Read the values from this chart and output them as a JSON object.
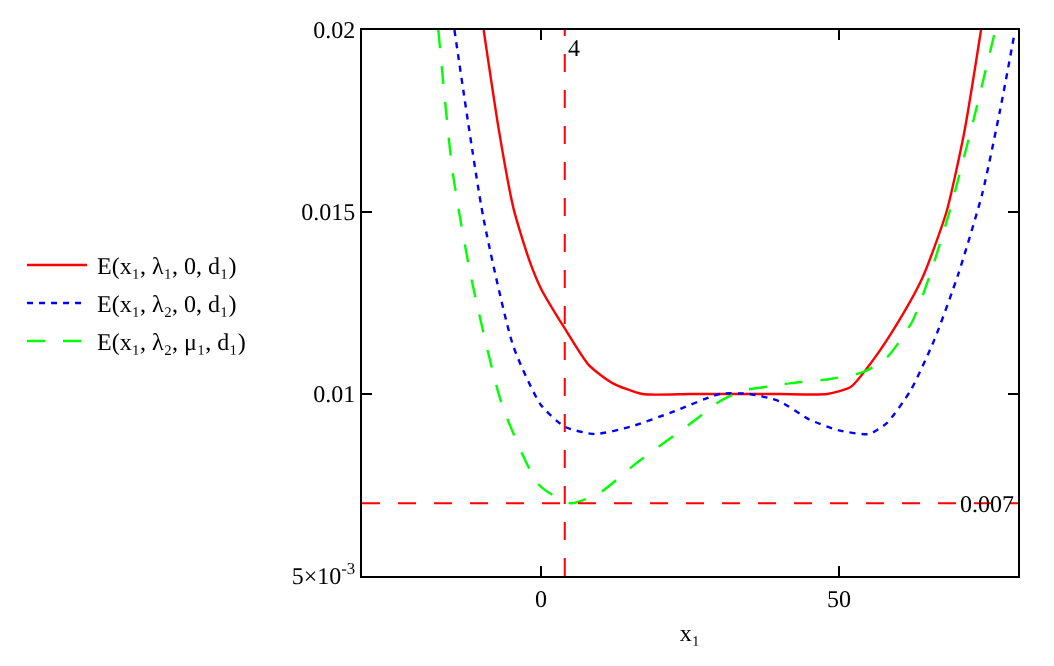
{
  "chart_data": {
    "type": "line",
    "xlabel": "x₁",
    "xlim": [
      -30,
      80
    ],
    "xticks": [
      0,
      50
    ],
    "ylim": [
      0.005,
      0.02
    ],
    "yticks": [
      {
        "value": 0.005,
        "label": "5×10$^{-3}$"
      },
      0.01,
      0.015,
      0.02
    ],
    "legend": "left",
    "marker": "none",
    "series": [
      {
        "name": "E(x₁, λ₁, 0, d₁)",
        "color": "#ff0000",
        "line_style": "solid",
        "x": [
          -9.6,
          -7,
          -4.6,
          -2,
          0,
          4,
          8,
          12,
          17,
          25,
          33,
          40,
          48,
          52,
          56,
          60,
          64,
          68,
          71,
          73.8
        ],
        "values": [
          0.02,
          0.0172,
          0.0151,
          0.0137,
          0.0129,
          0.0118,
          0.0108,
          0.0103,
          0.01,
          0.01,
          0.01,
          0.01,
          0.01,
          0.0102,
          0.011,
          0.012,
          0.0132,
          0.015,
          0.0172,
          0.02
        ]
      },
      {
        "name": "E(x₁, λ₂, 0, d₁)",
        "color": "#0000ff",
        "line_style": "dotted",
        "x": [
          -14.5,
          -9.6,
          -4.6,
          0,
          4,
          9,
          15,
          22,
          30,
          35,
          40,
          45,
          50,
          55,
          58,
          62,
          66,
          70,
          74,
          77,
          79.3
        ],
        "values": [
          0.02,
          0.0148,
          0.0113,
          0.0097,
          0.0091,
          0.0089,
          0.0091,
          0.0095,
          0.01,
          0.01,
          0.0098,
          0.0093,
          0.009,
          0.0089,
          0.0092,
          0.0101,
          0.0115,
          0.0133,
          0.0155,
          0.0178,
          0.0198
        ]
      },
      {
        "name": "E(x₁, λ₂, μ₁, d₁)",
        "color": "#00ff00",
        "line_style": "dashed",
        "x": [
          -17.2,
          -14.8,
          -11.7,
          -6.5,
          -0.3,
          5,
          10,
          16,
          21,
          26,
          30,
          34,
          38,
          42,
          48,
          54,
          58,
          62.3,
          65.5,
          68.5,
          72.5,
          76.2
        ],
        "values": [
          0.02,
          0.0161,
          0.0132,
          0.0097,
          0.0075,
          0.007,
          0.0073,
          0.0081,
          0.0087,
          0.0093,
          0.0098,
          0.0101,
          0.0102,
          0.0103,
          0.0104,
          0.0106,
          0.011,
          0.012,
          0.0134,
          0.015,
          0.0175,
          0.02
        ]
      }
    ],
    "ref_lines": [
      {
        "axis": "x",
        "value": 4,
        "label": "4",
        "color": "#ff0000",
        "line_style": "dashed"
      },
      {
        "axis": "y",
        "value": 0.007,
        "label": "0.007",
        "color": "#ff0000",
        "line_style": "dashed"
      }
    ]
  }
}
